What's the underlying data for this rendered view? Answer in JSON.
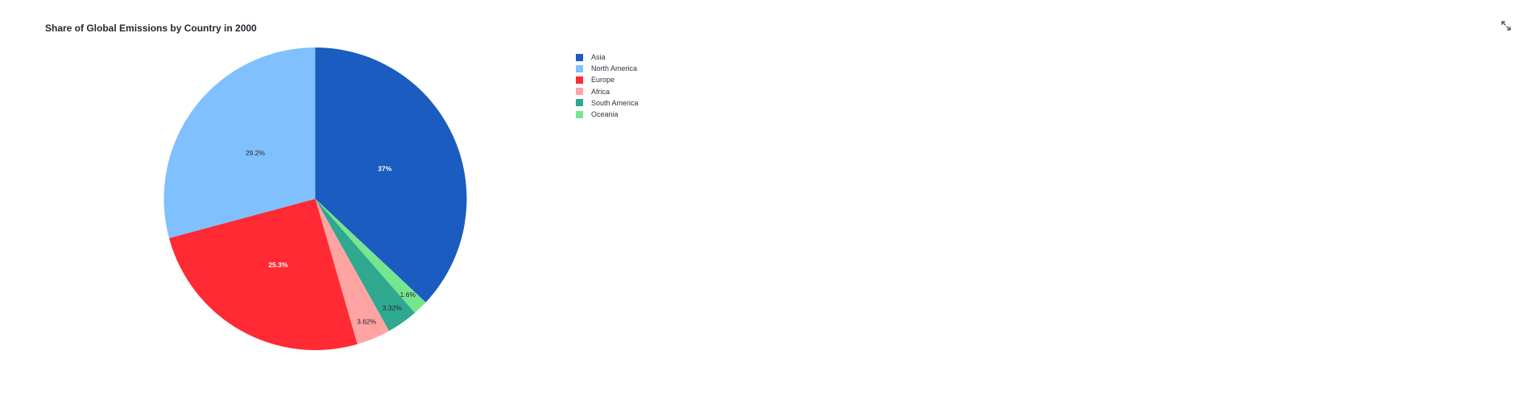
{
  "chart_data": {
    "type": "pie",
    "title": "Share of Global Emissions by Country in 2000",
    "categories": [
      "Asia",
      "North America",
      "Europe",
      "Africa",
      "South America",
      "Oceania"
    ],
    "values": [
      37.0,
      29.2,
      25.3,
      3.62,
      3.32,
      1.6
    ],
    "labels": [
      "37%",
      "29.2%",
      "25.3%",
      "3.62%",
      "3.32%",
      "1.6%"
    ],
    "colors": [
      "#1a5cbf",
      "#80c0ff",
      "#ff2a33",
      "#ffa3a3",
      "#2ea88e",
      "#76e58f"
    ],
    "label_colors": [
      "#ffffff",
      "#262730",
      "#ffffff",
      "#262730",
      "#262730",
      "#262730"
    ],
    "sort_order": [
      "Asia",
      "Oceania",
      "South America",
      "Africa",
      "Europe",
      "North America"
    ],
    "direction": "clockwise",
    "start": "top",
    "legend": "right"
  }
}
